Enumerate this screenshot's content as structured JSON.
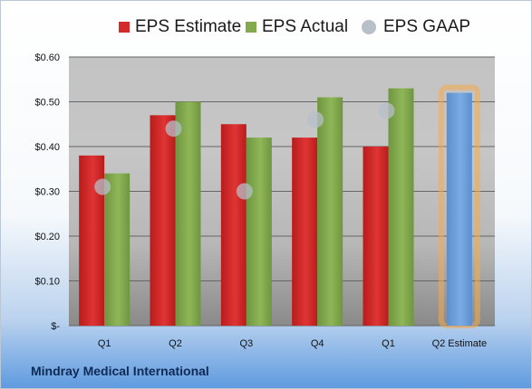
{
  "chart_data": {
    "type": "bar",
    "title": "Mindray Medical International",
    "categories": [
      "Q1",
      "Q2",
      "Q3",
      "Q4",
      "Q1",
      "Q2 Estimate"
    ],
    "series": [
      {
        "name": "EPS Estimate",
        "color": "#d42a2a",
        "values": [
          0.38,
          0.47,
          0.45,
          0.42,
          0.4,
          null
        ]
      },
      {
        "name": "EPS Actual",
        "color": "#84aa4e",
        "values": [
          0.34,
          0.5,
          0.42,
          0.51,
          0.53,
          0.52
        ]
      },
      {
        "name": "EPS GAAP",
        "color": "#b7bfc8",
        "values": [
          0.31,
          0.44,
          0.3,
          0.46,
          0.48,
          null
        ]
      }
    ],
    "highlight": {
      "category_index": 5,
      "color": "#6d9fd9",
      "glow": "#f5a94a"
    },
    "ylim": [
      0,
      0.6
    ],
    "yticks": [
      0,
      0.1,
      0.2,
      0.3,
      0.4,
      0.5,
      0.6
    ],
    "ytick_labels": [
      "$-",
      "$0.10",
      "$0.20",
      "$0.30",
      "$0.40",
      "$0.50",
      "$0.60"
    ],
    "legend_position": "top",
    "grid": true
  }
}
